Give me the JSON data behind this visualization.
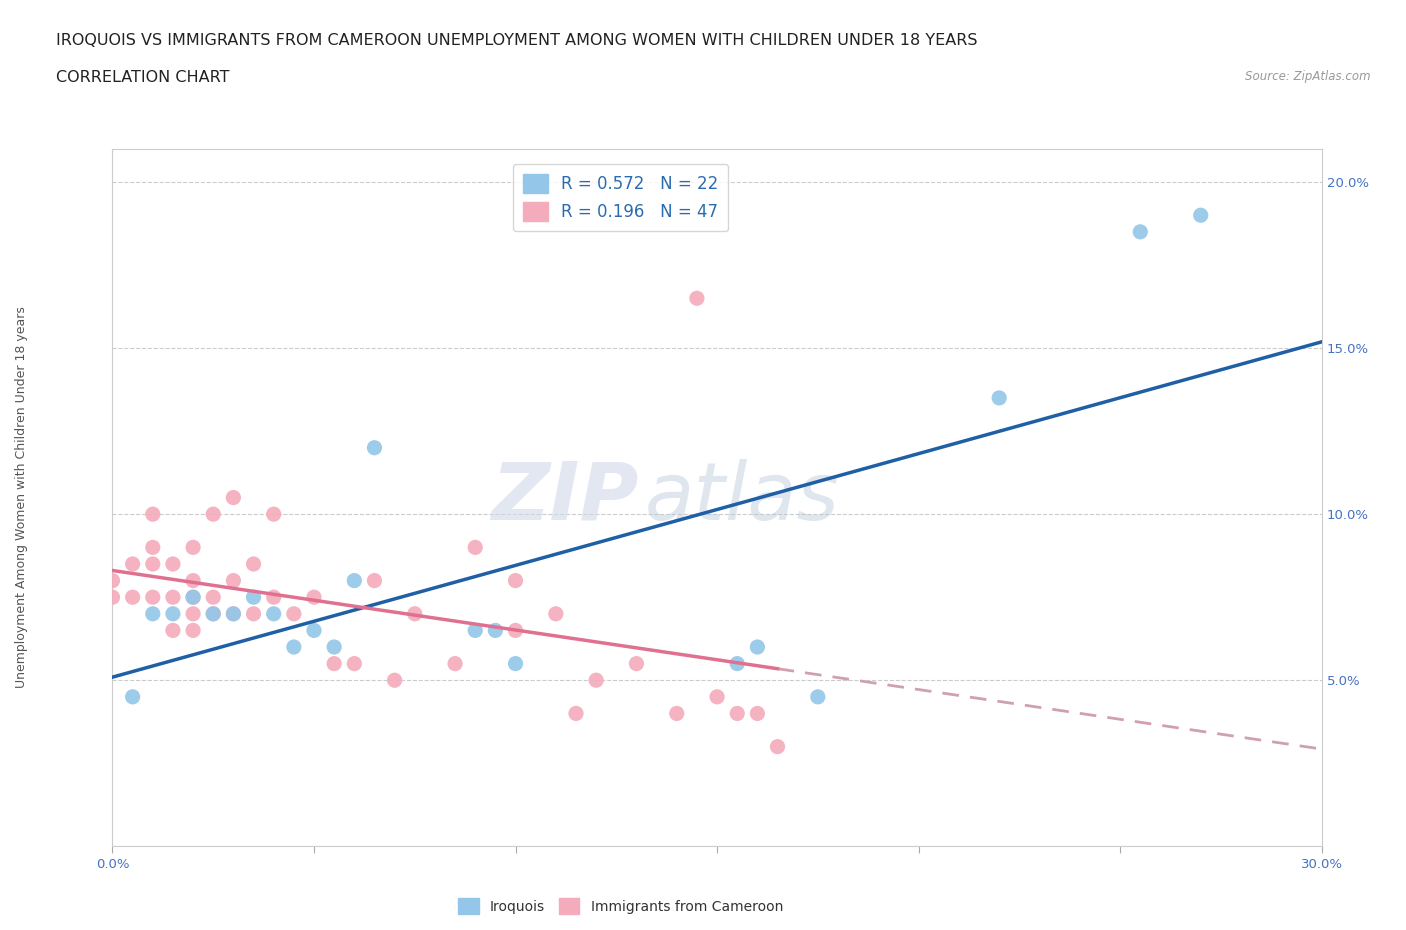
{
  "title_line1": "IROQUOIS VS IMMIGRANTS FROM CAMEROON UNEMPLOYMENT AMONG WOMEN WITH CHILDREN UNDER 18 YEARS",
  "title_line2": "CORRELATION CHART",
  "source_text": "Source: ZipAtlas.com",
  "ylabel": "Unemployment Among Women with Children Under 18 years",
  "xlim": [
    0.0,
    0.3
  ],
  "ylim": [
    0.0,
    0.21
  ],
  "xticks": [
    0.0,
    0.05,
    0.1,
    0.15,
    0.2,
    0.25,
    0.3
  ],
  "yticks": [
    0.0,
    0.05,
    0.1,
    0.15,
    0.2
  ],
  "iroquois_color": "#93C6E8",
  "cameroon_color": "#F4ABBB",
  "iroquois_line_color": "#1F5FA6",
  "cameroon_line_color": "#E07090",
  "cameroon_dash_color": "#D0A0B0",
  "iroquois_R": 0.572,
  "iroquois_N": 22,
  "cameroon_R": 0.196,
  "cameroon_N": 47,
  "iroquois_x": [
    0.005,
    0.01,
    0.015,
    0.02,
    0.025,
    0.03,
    0.035,
    0.04,
    0.045,
    0.05,
    0.055,
    0.06,
    0.065,
    0.09,
    0.095,
    0.1,
    0.155,
    0.16,
    0.175,
    0.22,
    0.255,
    0.27
  ],
  "iroquois_y": [
    0.045,
    0.07,
    0.07,
    0.075,
    0.07,
    0.07,
    0.075,
    0.07,
    0.06,
    0.065,
    0.06,
    0.08,
    0.12,
    0.065,
    0.065,
    0.055,
    0.055,
    0.06,
    0.045,
    0.135,
    0.185,
    0.19
  ],
  "cameroon_x": [
    0.0,
    0.0,
    0.005,
    0.005,
    0.01,
    0.01,
    0.01,
    0.01,
    0.015,
    0.015,
    0.015,
    0.02,
    0.02,
    0.02,
    0.02,
    0.02,
    0.025,
    0.025,
    0.025,
    0.03,
    0.03,
    0.03,
    0.035,
    0.035,
    0.04,
    0.04,
    0.045,
    0.05,
    0.055,
    0.06,
    0.065,
    0.07,
    0.075,
    0.085,
    0.09,
    0.1,
    0.1,
    0.11,
    0.115,
    0.12,
    0.13,
    0.14,
    0.145,
    0.15,
    0.155,
    0.16,
    0.165
  ],
  "cameroon_y": [
    0.075,
    0.08,
    0.075,
    0.085,
    0.075,
    0.085,
    0.09,
    0.1,
    0.065,
    0.075,
    0.085,
    0.065,
    0.07,
    0.075,
    0.08,
    0.09,
    0.07,
    0.075,
    0.1,
    0.07,
    0.08,
    0.105,
    0.07,
    0.085,
    0.075,
    0.1,
    0.07,
    0.075,
    0.055,
    0.055,
    0.08,
    0.05,
    0.07,
    0.055,
    0.09,
    0.065,
    0.08,
    0.07,
    0.04,
    0.05,
    0.055,
    0.04,
    0.165,
    0.045,
    0.04,
    0.04,
    0.03
  ],
  "watermark_zip": "ZIP",
  "watermark_atlas": "atlas",
  "title_fontsize": 11.5,
  "axis_label_fontsize": 9,
  "tick_fontsize": 9.5,
  "legend_fontsize": 12
}
